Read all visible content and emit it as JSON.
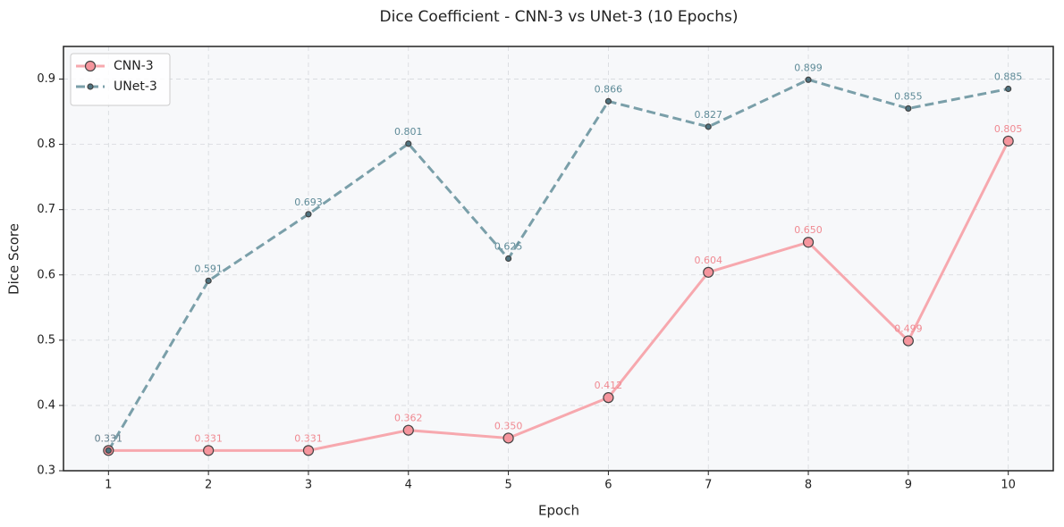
{
  "chart_data": {
    "type": "line",
    "title": "Dice Coefficient - CNN-3 vs UNet-3 (10 Epochs)",
    "xlabel": "Epoch",
    "ylabel": "Dice Score",
    "x": [
      1,
      2,
      3,
      4,
      5,
      6,
      7,
      8,
      9,
      10
    ],
    "series": [
      {
        "name": "CNN-3",
        "color": "#f7a8ae",
        "label_color": "#f08a92",
        "linestyle": "solid",
        "values": [
          0.331,
          0.331,
          0.331,
          0.362,
          0.35,
          0.412,
          0.604,
          0.65,
          0.499,
          0.805
        ],
        "value_labels": [
          "0.331",
          "0.331",
          "0.331",
          "0.362",
          "0.350",
          "0.412",
          "0.604",
          "0.650",
          "0.499",
          "0.805"
        ]
      },
      {
        "name": "UNet-3",
        "color": "#7a9fa9",
        "label_color": "#5f8b98",
        "linestyle": "dashed",
        "values": [
          0.331,
          0.591,
          0.693,
          0.801,
          0.625,
          0.866,
          0.827,
          0.899,
          0.855,
          0.885
        ],
        "value_labels": [
          "0.331",
          "0.591",
          "0.693",
          "0.801",
          "0.625",
          "0.866",
          "0.827",
          "0.899",
          "0.855",
          "0.885"
        ]
      }
    ],
    "xlim": [
      0.55,
      10.45
    ],
    "ylim": [
      0.3,
      0.95
    ],
    "xticks": [
      1,
      2,
      3,
      4,
      5,
      6,
      7,
      8,
      9,
      10
    ],
    "yticks": [
      0.3,
      0.4,
      0.5,
      0.6,
      0.7,
      0.8,
      0.9
    ],
    "grid": true,
    "legend": "upper-left"
  }
}
